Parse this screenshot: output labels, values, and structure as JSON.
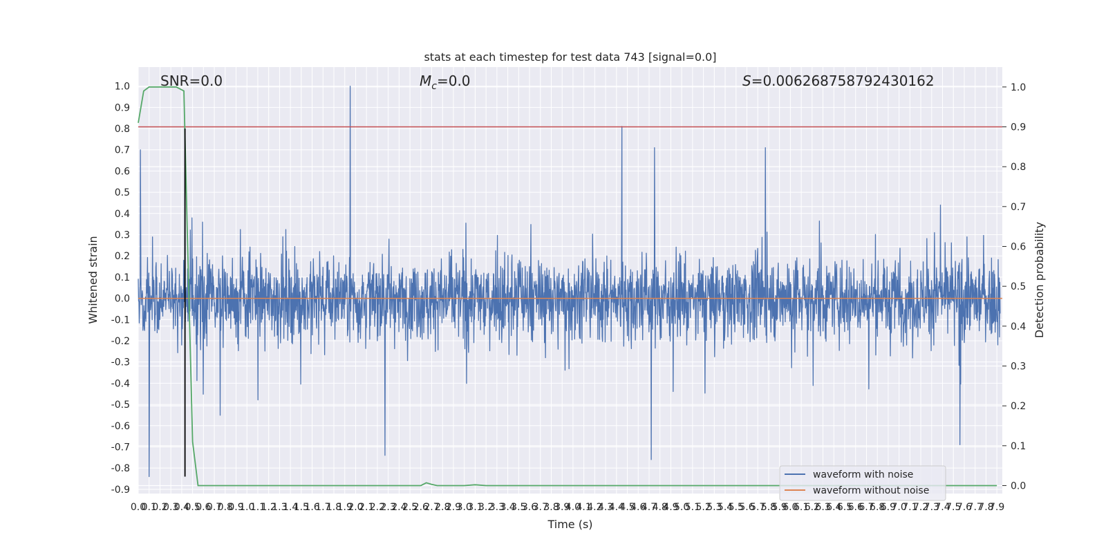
{
  "chart_data": {
    "type": "line",
    "title": "stats at each timestep for test data 743 [signal=0.0]",
    "xlabel": "Time (s)",
    "ylabel": "Whitened strain",
    "ylabel_right": "Detection probability",
    "xlim": [
      0.0,
      7.95
    ],
    "ylim": [
      -0.92,
      1.09
    ],
    "ylim_right": [
      -0.02,
      1.05
    ],
    "x_ticks": [
      "0.0",
      "0.1",
      "0.2",
      "0.3",
      "0.4",
      "0.5",
      "0.6",
      "0.7",
      "0.8",
      "0.9",
      "1.0",
      "1.1",
      "1.2",
      "1.3",
      "1.4",
      "1.5",
      "1.6",
      "1.7",
      "1.8",
      "1.9",
      "2.0",
      "2.1",
      "2.2",
      "2.3",
      "2.4",
      "2.5",
      "2.6",
      "2.7",
      "2.8",
      "2.9",
      "3.0",
      "3.1",
      "3.2",
      "3.3",
      "3.4",
      "3.5",
      "3.6",
      "3.7",
      "3.8",
      "3.9",
      "4.0",
      "4.1",
      "4.2",
      "4.3",
      "4.4",
      "4.5",
      "4.6",
      "4.7",
      "4.8",
      "4.9",
      "5.0",
      "5.1",
      "5.2",
      "5.3",
      "5.4",
      "5.5",
      "5.6",
      "5.7",
      "5.8",
      "5.9",
      "6.0",
      "6.1",
      "6.2",
      "6.3",
      "6.4",
      "6.5",
      "6.6",
      "6.7",
      "6.8",
      "6.9",
      "7.0",
      "7.1",
      "7.2",
      "7.3",
      "7.4",
      "7.5",
      "7.6",
      "7.7",
      "7.8",
      "7.9"
    ],
    "y_ticks_left": [
      "1.0",
      "0.9",
      "0.8",
      "0.7",
      "0.6",
      "0.5",
      "0.4",
      "0.3",
      "0.2",
      "0.1",
      "0.0",
      "-0.1",
      "-0.2",
      "-0.3",
      "-0.4",
      "-0.5",
      "-0.6",
      "-0.7",
      "-0.8",
      "-0.9"
    ],
    "y_ticks_right": [
      "1.0",
      "0.9",
      "0.8",
      "0.7",
      "0.6",
      "0.5",
      "0.4",
      "0.3",
      "0.2",
      "0.1",
      "0.0"
    ],
    "annotations": {
      "snr": "SNR=0.0",
      "mc_symbol": "M",
      "mc_sub": "c",
      "mc_value": "=0.0",
      "s_symbol": "S",
      "s_value": "=0.006268758792430162"
    },
    "series": [
      {
        "name": "waveform with noise",
        "color": "#4c72b0",
        "kind": "noisy_strain",
        "envelope_typical": [
          -0.3,
          0.35
        ],
        "extremes": [
          {
            "x": 0.02,
            "y": 0.7
          },
          {
            "x": 0.1,
            "y": -0.84
          },
          {
            "x": 0.43,
            "y": 0.8
          },
          {
            "x": 1.95,
            "y": 1.0
          },
          {
            "x": 2.27,
            "y": -0.74
          },
          {
            "x": 4.45,
            "y": 0.81
          },
          {
            "x": 4.72,
            "y": -0.76
          },
          {
            "x": 4.75,
            "y": 0.71
          },
          {
            "x": 5.77,
            "y": 0.71
          },
          {
            "x": 7.56,
            "y": -0.69
          }
        ]
      },
      {
        "name": "waveform without noise",
        "color": "#dd8452",
        "x": [
          0.0,
          7.95
        ],
        "y": [
          0.0,
          0.0
        ]
      },
      {
        "name": "detection probability",
        "color": "#55a868",
        "axis": "right",
        "x": [
          0.0,
          0.05,
          0.1,
          0.15,
          0.2,
          0.25,
          0.3,
          0.35,
          0.42,
          0.45,
          0.5,
          0.55,
          2.55,
          2.6,
          2.65,
          2.7,
          2.75,
          2.8,
          3.0,
          3.1,
          3.2,
          3.3,
          7.9
        ],
        "y": [
          0.91,
          0.99,
          1.0,
          1.0,
          1.0,
          1.0,
          1.0,
          1.0,
          0.99,
          0.65,
          0.11,
          0.0,
          0.0,
          0.0,
          0.007,
          0.003,
          0.0,
          0.0,
          0.0,
          0.002,
          0.0,
          0.0,
          0.0
        ]
      },
      {
        "name": "threshold",
        "color": "#c44e52",
        "axis": "right",
        "x": [
          0.0,
          7.95
        ],
        "y": [
          0.9,
          0.9
        ]
      },
      {
        "name": "marker",
        "color": "#000000",
        "kind": "vertical_line",
        "x": 0.43,
        "y_range": [
          -0.84,
          0.8
        ]
      }
    ],
    "legend": {
      "placement": "bottom-right",
      "entries": [
        "waveform with noise",
        "waveform without noise"
      ]
    },
    "grid": true,
    "background": "#eaeaf2"
  }
}
